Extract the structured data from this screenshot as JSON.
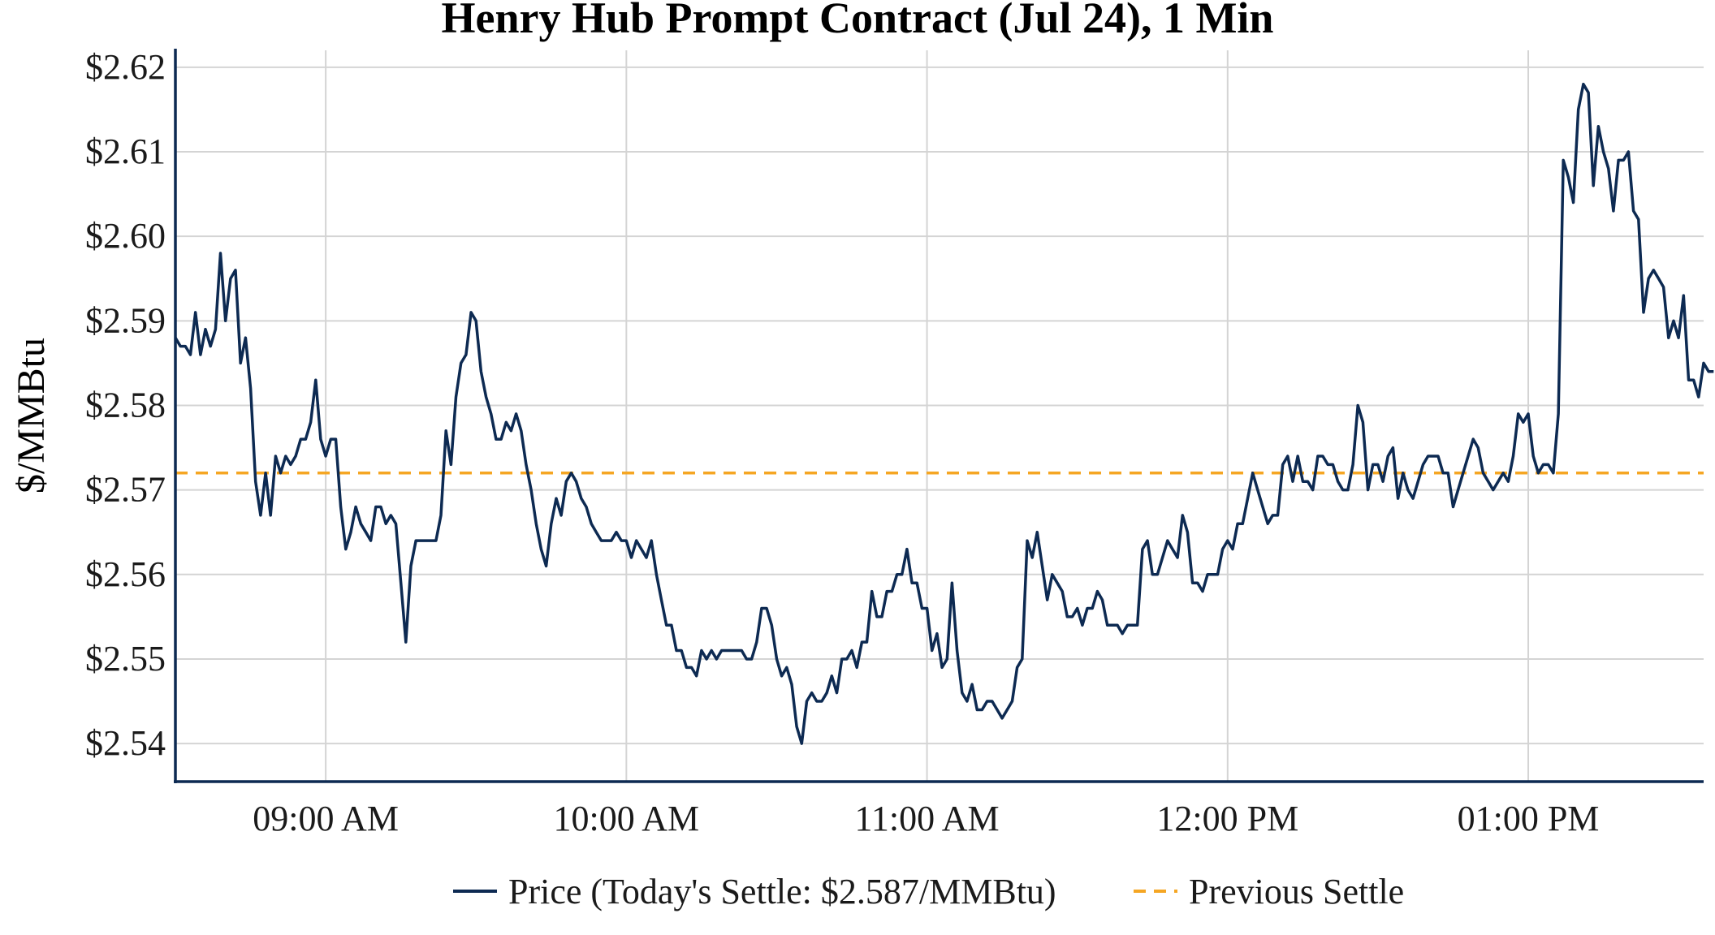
{
  "chart_data": {
    "type": "line",
    "title": "Henry Hub Prompt Contract (Jul 24), 1 Min",
    "xlabel": "",
    "ylabel": "$/MMBtu",
    "x_tick_labels": [
      "09:00 AM",
      "10:00 AM",
      "11:00 AM",
      "12:00 PM",
      "01:00 PM"
    ],
    "x_tick_minutes": [
      540,
      600,
      660,
      720,
      780
    ],
    "xlim_minutes": [
      510,
      815
    ],
    "y_tick_labels": [
      "$2.54",
      "$2.55",
      "$2.56",
      "$2.57",
      "$2.58",
      "$2.59",
      "$2.60",
      "$2.61",
      "$2.62"
    ],
    "y_ticks": [
      2.54,
      2.55,
      2.56,
      2.57,
      2.58,
      2.59,
      2.6,
      2.61,
      2.62
    ],
    "ylim": [
      2.5355,
      2.622
    ],
    "grid": true,
    "legend_position": "bottom-center",
    "colors": {
      "price": "#0d2a52",
      "previous_settle": "#f5a623",
      "grid": "#d4d4d4",
      "axis": "#0d2a52"
    },
    "series": [
      {
        "name": "Price (Today's Settle: $2.587/MMBtu)",
        "x_start_minutes": 510,
        "x_step_minutes": 1,
        "values": [
          2.588,
          2.587,
          2.587,
          2.586,
          2.591,
          2.586,
          2.589,
          2.587,
          2.589,
          2.598,
          2.59,
          2.595,
          2.596,
          2.585,
          2.588,
          2.582,
          2.571,
          2.567,
          2.572,
          2.567,
          2.574,
          2.572,
          2.574,
          2.573,
          2.574,
          2.576,
          2.576,
          2.578,
          2.583,
          2.576,
          2.574,
          2.576,
          2.576,
          2.568,
          2.563,
          2.565,
          2.568,
          2.566,
          2.565,
          2.564,
          2.568,
          2.568,
          2.566,
          2.567,
          2.566,
          2.559,
          2.552,
          2.561,
          2.564,
          2.564,
          2.564,
          2.564,
          2.564,
          2.567,
          2.577,
          2.573,
          2.581,
          2.585,
          2.586,
          2.591,
          2.59,
          2.584,
          2.581,
          2.579,
          2.576,
          2.576,
          2.578,
          2.577,
          2.579,
          2.577,
          2.573,
          2.57,
          2.566,
          2.563,
          2.561,
          2.566,
          2.569,
          2.567,
          2.571,
          2.572,
          2.571,
          2.569,
          2.568,
          2.566,
          2.565,
          2.564,
          2.564,
          2.564,
          2.565,
          2.564,
          2.564,
          2.562,
          2.564,
          2.563,
          2.562,
          2.564,
          2.56,
          2.557,
          2.554,
          2.554,
          2.551,
          2.551,
          2.549,
          2.549,
          2.548,
          2.551,
          2.55,
          2.551,
          2.55,
          2.551,
          2.551,
          2.551,
          2.551,
          2.551,
          2.55,
          2.55,
          2.552,
          2.556,
          2.556,
          2.554,
          2.55,
          2.548,
          2.549,
          2.547,
          2.542,
          2.54,
          2.545,
          2.546,
          2.545,
          2.545,
          2.546,
          2.548,
          2.546,
          2.55,
          2.55,
          2.551,
          2.549,
          2.552,
          2.552,
          2.558,
          2.555,
          2.555,
          2.558,
          2.558,
          2.56,
          2.56,
          2.563,
          2.559,
          2.559,
          2.556,
          2.556,
          2.551,
          2.553,
          2.549,
          2.55,
          2.559,
          2.551,
          2.546,
          2.545,
          2.547,
          2.544,
          2.544,
          2.545,
          2.545,
          2.544,
          2.543,
          2.544,
          2.545,
          2.549,
          2.55,
          2.564,
          2.562,
          2.565,
          2.561,
          2.557,
          2.56,
          2.559,
          2.558,
          2.555,
          2.555,
          2.556,
          2.554,
          2.556,
          2.556,
          2.558,
          2.557,
          2.554,
          2.554,
          2.554,
          2.553,
          2.554,
          2.554,
          2.554,
          2.563,
          2.564,
          2.56,
          2.56,
          2.562,
          2.564,
          2.563,
          2.562,
          2.567,
          2.565,
          2.559,
          2.559,
          2.558,
          2.56,
          2.56,
          2.56,
          2.563,
          2.564,
          2.563,
          2.566,
          2.566,
          2.569,
          2.572,
          2.57,
          2.568,
          2.566,
          2.567,
          2.567,
          2.573,
          2.574,
          2.571,
          2.574,
          2.571,
          2.571,
          2.57,
          2.574,
          2.574,
          2.573,
          2.573,
          2.571,
          2.57,
          2.57,
          2.573,
          2.58,
          2.578,
          2.57,
          2.573,
          2.573,
          2.571,
          2.574,
          2.575,
          2.569,
          2.572,
          2.57,
          2.569,
          2.571,
          2.573,
          2.574,
          2.574,
          2.574,
          2.572,
          2.572,
          2.568,
          2.57,
          2.572,
          2.574,
          2.576,
          2.575,
          2.572,
          2.571,
          2.57,
          2.571,
          2.572,
          2.571,
          2.574,
          2.579,
          2.578,
          2.579,
          2.574,
          2.572,
          2.573,
          2.573,
          2.572,
          2.579,
          2.609,
          2.607,
          2.604,
          2.615,
          2.618,
          2.617,
          2.606,
          2.613,
          2.61,
          2.608,
          2.603,
          2.609,
          2.609,
          2.61,
          2.603,
          2.602,
          2.591,
          2.595,
          2.596,
          2.595,
          2.594,
          2.588,
          2.59,
          2.588,
          2.593,
          2.583,
          2.583,
          2.581,
          2.585,
          2.584,
          2.584
        ]
      },
      {
        "name": "Previous Settle",
        "value": 2.572
      }
    ]
  }
}
